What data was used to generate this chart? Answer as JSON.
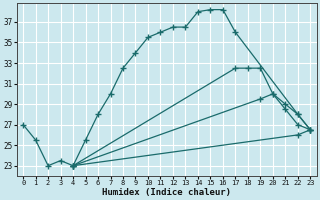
{
  "xlabel": "Humidex (Indice chaleur)",
  "background_color": "#cce8ee",
  "grid_color": "#ffffff",
  "line_color": "#1a6b6b",
  "xlim": [
    -0.5,
    23.5
  ],
  "ylim": [
    22.0,
    38.8
  ],
  "xticks": [
    0,
    1,
    2,
    3,
    4,
    5,
    6,
    7,
    8,
    9,
    10,
    11,
    12,
    13,
    14,
    15,
    16,
    17,
    18,
    19,
    20,
    21,
    22,
    23
  ],
  "yticks": [
    23,
    25,
    27,
    29,
    31,
    33,
    35,
    37
  ],
  "lines": [
    {
      "x": [
        0,
        1,
        2,
        3,
        4,
        5,
        6,
        7,
        8,
        9,
        10,
        11,
        12,
        13,
        14,
        15,
        16,
        17,
        22,
        23
      ],
      "y": [
        27,
        25.5,
        23,
        23.5,
        23,
        25.5,
        28,
        30,
        32.5,
        34,
        35.5,
        36,
        36.5,
        36.5,
        38,
        38.2,
        38.2,
        36,
        28,
        26.5
      ]
    },
    {
      "x": [
        4,
        17,
        18,
        19,
        20,
        21,
        22,
        23
      ],
      "y": [
        23,
        32.5,
        32.5,
        32.5,
        30,
        29,
        28,
        26.5
      ]
    },
    {
      "x": [
        4,
        19,
        20,
        21,
        22,
        23
      ],
      "y": [
        23,
        29.5,
        30,
        28.5,
        27,
        26.5
      ]
    },
    {
      "x": [
        4,
        22,
        23
      ],
      "y": [
        23,
        26,
        26.5
      ]
    }
  ]
}
